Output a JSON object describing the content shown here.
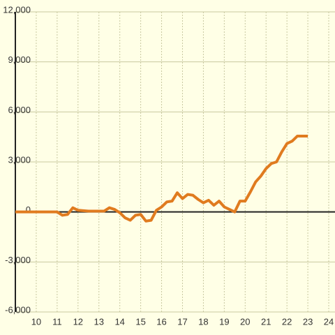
{
  "chart_data": {
    "type": "line",
    "x": [
      9,
      9.5,
      10,
      10.5,
      11,
      11.25,
      11.5,
      11.75,
      12,
      12.5,
      13,
      13.25,
      13.5,
      13.75,
      14,
      14.25,
      14.5,
      14.75,
      15,
      15.25,
      15.5,
      15.75,
      16,
      16.25,
      16.5,
      16.75,
      17,
      17.25,
      17.5,
      17.75,
      18,
      18.25,
      18.5,
      18.75,
      19,
      19.25,
      19.5,
      19.75,
      20,
      20.25,
      20.5,
      20.75,
      21,
      21.25,
      21.5,
      21.75,
      22,
      22.25,
      22.5,
      22.75,
      23
    ],
    "series": [
      {
        "color": "#e07b1f",
        "values": [
          0,
          0,
          0,
          0,
          0,
          -200,
          -150,
          250,
          100,
          50,
          50,
          50,
          250,
          150,
          -50,
          -350,
          -500,
          -200,
          -150,
          -550,
          -500,
          100,
          300,
          600,
          650,
          1150,
          800,
          1050,
          1000,
          750,
          550,
          700,
          400,
          650,
          300,
          150,
          0,
          650,
          650,
          1200,
          1800,
          2150,
          2600,
          2900,
          3000,
          3600,
          4100,
          4250,
          4550,
          4550,
          4550
        ]
      }
    ],
    "xlim": [
      9,
      24.3
    ],
    "xticks": [
      10,
      11,
      12,
      13,
      14,
      15,
      16,
      17,
      18,
      19,
      20,
      21,
      22,
      23,
      24
    ],
    "ylim": [
      -6000,
      12000
    ],
    "yticks": [
      {
        "value": -6000,
        "label": "-6,000"
      },
      {
        "value": -3000,
        "label": "-3,000"
      },
      0,
      {
        "value": 3000,
        "label": "3,000"
      },
      {
        "value": 6000,
        "label": "6,000"
      },
      {
        "value": 9000,
        "label": "9,000"
      },
      {
        "value": 12000,
        "label": "12,000"
      }
    ],
    "grid": true
  }
}
